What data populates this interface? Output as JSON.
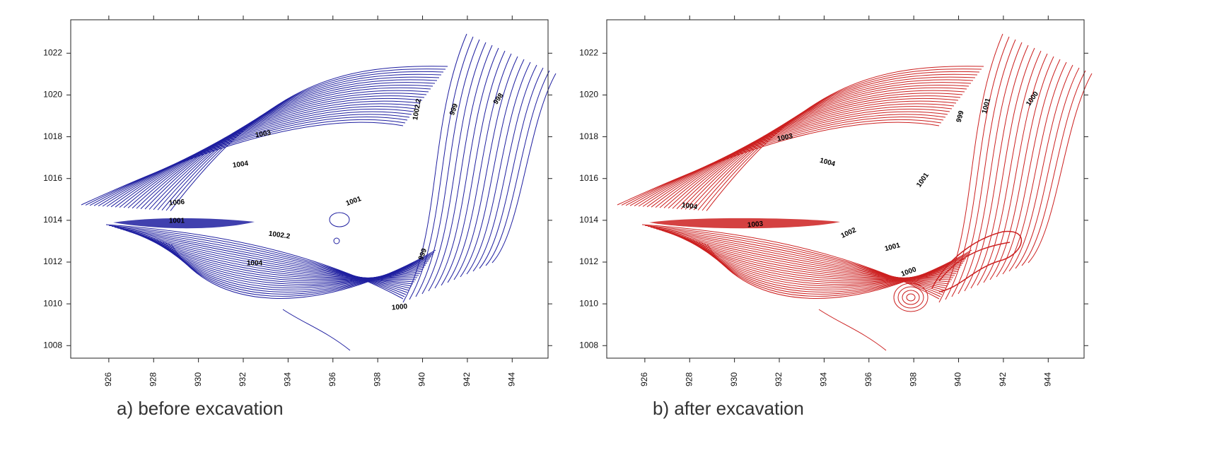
{
  "chart_data": [
    {
      "type": "contour",
      "caption": "a) before excavation",
      "color": "#1f1fa0",
      "xlim": [
        924.3,
        945.6
      ],
      "ylim": [
        1007.4,
        1023.6
      ],
      "xticks": [
        926,
        928,
        930,
        932,
        934,
        936,
        938,
        940,
        942,
        944
      ],
      "yticks": [
        1008,
        1010,
        1012,
        1014,
        1016,
        1018,
        1020,
        1022
      ],
      "contour_labels": [
        "1003",
        "1004",
        "1006",
        "1001",
        "1002.2",
        "1004",
        "1000",
        "1001",
        "1002.2",
        "999",
        "998",
        "999"
      ]
    },
    {
      "type": "contour",
      "caption": "b) after excavation",
      "color": "#cc2020",
      "xlim": [
        924.3,
        945.6
      ],
      "ylim": [
        1007.4,
        1023.6
      ],
      "xticks": [
        926,
        928,
        930,
        932,
        934,
        936,
        938,
        940,
        942,
        944
      ],
      "yticks": [
        1008,
        1010,
        1012,
        1014,
        1016,
        1018,
        1020,
        1022
      ],
      "contour_labels": [
        "1003",
        "1004",
        "1004",
        "1003",
        "1002",
        "1001",
        "1000",
        "1001",
        "999",
        "1001",
        "1000"
      ]
    }
  ]
}
